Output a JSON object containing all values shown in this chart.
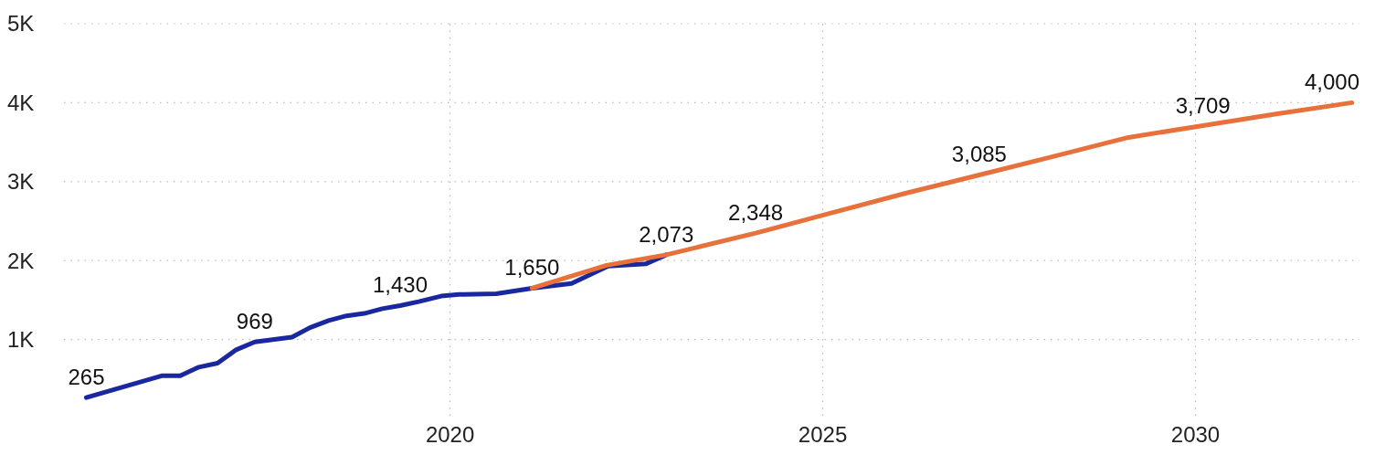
{
  "chart_data": {
    "type": "line",
    "xlim": [
      2014.82,
      2032.2
    ],
    "ylim": [
      0,
      5000
    ],
    "xticks": [
      2020,
      2025,
      2030
    ],
    "yticks": [
      {
        "value": 1000,
        "label": "1K"
      },
      {
        "value": 2000,
        "label": "2K"
      },
      {
        "value": 3000,
        "label": "3K"
      },
      {
        "value": 4000,
        "label": "4K"
      },
      {
        "value": 5000,
        "label": "5K"
      }
    ],
    "grid": true,
    "series": [
      {
        "color": "#1a28a0",
        "x": [
          2015.12,
          2016.13,
          2016.38,
          2016.63,
          2016.88,
          2017.13,
          2017.38,
          2017.88,
          2018.12,
          2018.37,
          2018.61,
          2018.85,
          2019.09,
          2019.33,
          2019.58,
          2019.88,
          2020.12,
          2020.62,
          2021.1,
          2021.63,
          2022.12,
          2022.63,
          2022.9
        ],
        "values": [
          265,
          540,
          540,
          650,
          700,
          870,
          969,
          1030,
          1150,
          1240,
          1300,
          1330,
          1390,
          1430,
          1480,
          1550,
          1570,
          1580,
          1650,
          1710,
          1930,
          1960,
          2073
        ]
      },
      {
        "color": "#e8703a",
        "x": [
          2021.1,
          2022.1,
          2022.9,
          2024.1,
          2025.1,
          2026.1,
          2027.1,
          2028.1,
          2029.1,
          2030.1,
          2031.1,
          2032.1
        ],
        "values": [
          1650,
          1940,
          2073,
          2348,
          2600,
          2850,
          3085,
          3320,
          3560,
          3709,
          3860,
          4000
        ]
      }
    ],
    "annotations": [
      {
        "text": "265",
        "x": 2015.12,
        "y": 265
      },
      {
        "text": "969",
        "x": 2017.38,
        "y": 969
      },
      {
        "text": "1,430",
        "x": 2019.33,
        "y": 1430
      },
      {
        "text": "1,650",
        "x": 2021.1,
        "y": 1650
      },
      {
        "text": "2,073",
        "x": 2022.9,
        "y": 2073
      },
      {
        "text": "2,348",
        "x": 2024.1,
        "y": 2348
      },
      {
        "text": "3,085",
        "x": 2027.1,
        "y": 3085
      },
      {
        "text": "3,709",
        "x": 2030.1,
        "y": 3709
      },
      {
        "text": "4,000",
        "x": 2032.1,
        "y": 4000
      }
    ]
  }
}
